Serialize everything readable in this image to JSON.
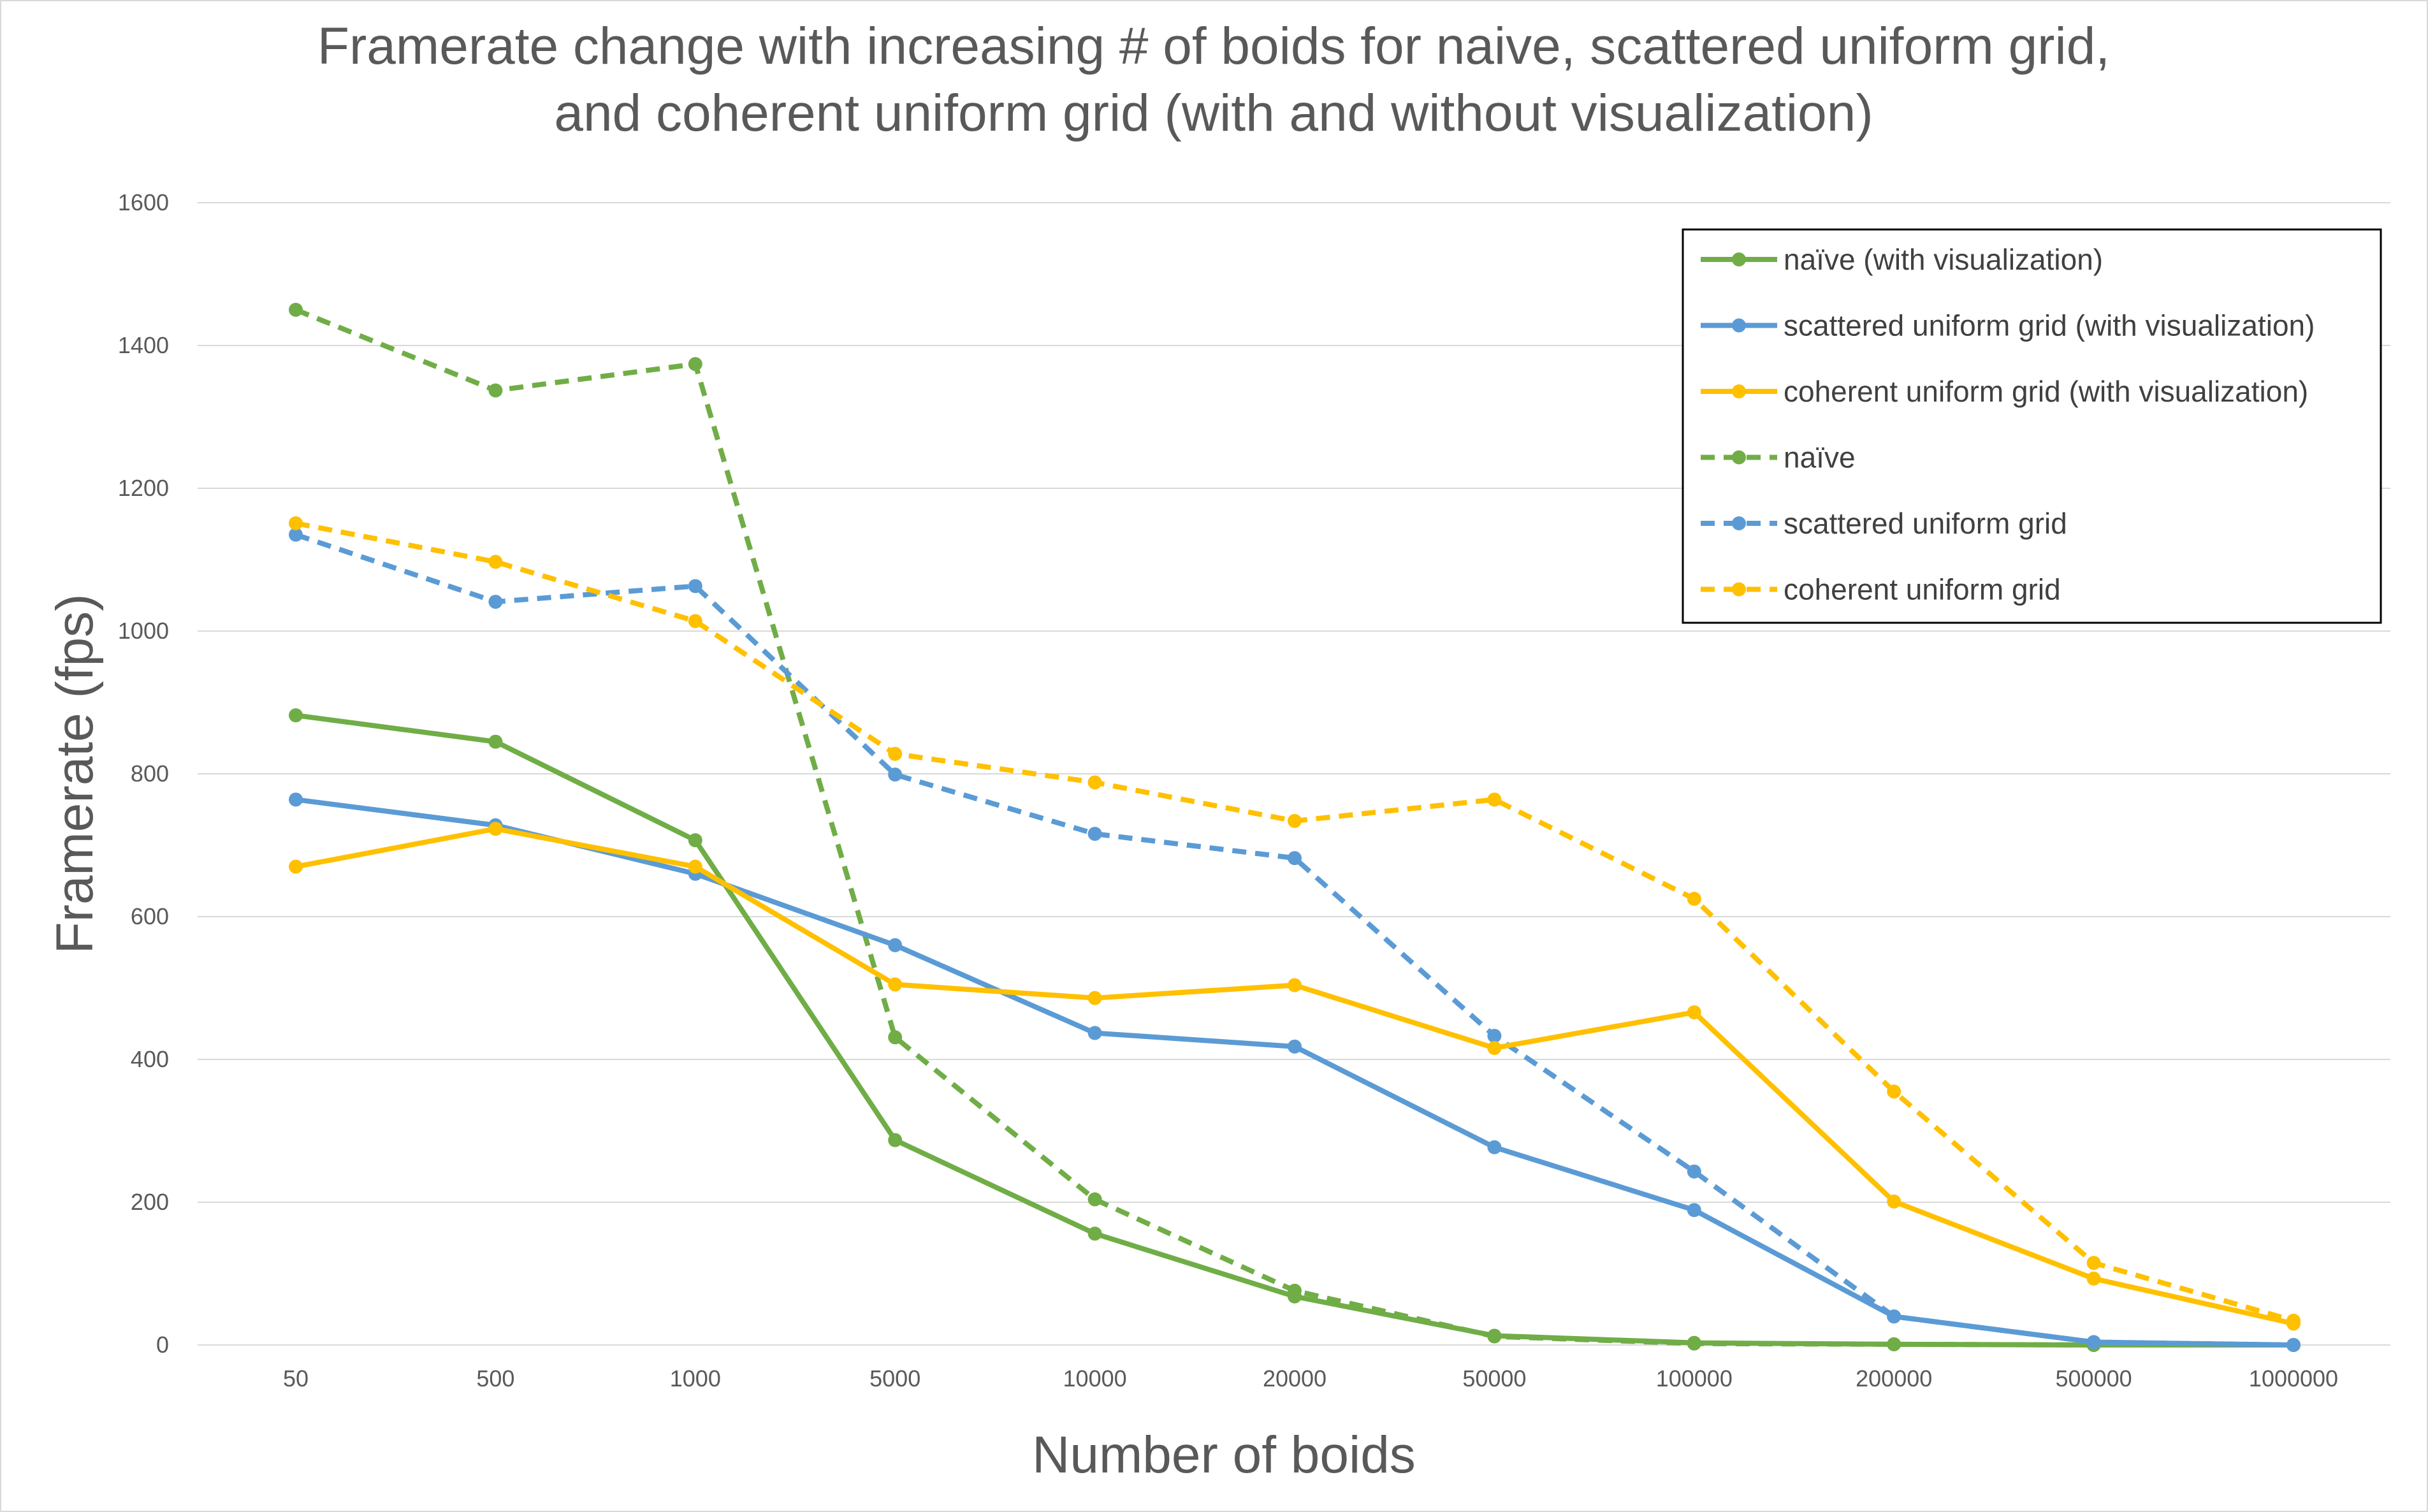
{
  "chart_data": {
    "type": "line",
    "title_lines": [
      "Framerate change with increasing # of boids for naive, scattered uniform grid,",
      "and coherent uniform grid (with and without visualization)"
    ],
    "xlabel": "Number of boids",
    "ylabel": "Framerate (fps)",
    "categories": [
      "50",
      "500",
      "1000",
      "5000",
      "10000",
      "20000",
      "50000",
      "100000",
      "200000",
      "500000",
      "1000000"
    ],
    "ylim": [
      0,
      1600
    ],
    "yticks": [
      "0",
      "200",
      "400",
      "600",
      "800",
      "1000",
      "1200",
      "1400",
      "1600"
    ],
    "grid": true,
    "legend_position": "top-right",
    "series": [
      {
        "name": "naïve (with visualization)",
        "color": "#70ad47",
        "dash": "solid",
        "values": [
          882,
          845,
          707,
          287,
          156,
          68,
          13,
          3,
          1,
          0,
          0
        ]
      },
      {
        "name": "scattered uniform grid (with visualization)",
        "color": "#5b9bd5",
        "dash": "solid",
        "values": [
          764,
          728,
          660,
          560,
          437,
          418,
          277,
          189,
          40,
          4,
          0
        ]
      },
      {
        "name": "coherent uniform grid (with visualization)",
        "color": "#ffc000",
        "dash": "solid",
        "values": [
          670,
          723,
          670,
          505,
          486,
          504,
          416,
          466,
          201,
          93,
          30
        ]
      },
      {
        "name": "naïve",
        "color": "#70ad47",
        "dash": "dashed",
        "values": [
          1450,
          1337,
          1374,
          431,
          204,
          76,
          12,
          2,
          1,
          0,
          0
        ]
      },
      {
        "name": "scattered uniform grid",
        "color": "#5b9bd5",
        "dash": "dashed",
        "values": [
          1135,
          1041,
          1063,
          799,
          716,
          682,
          433,
          243,
          40,
          4,
          0
        ]
      },
      {
        "name": "coherent uniform grid",
        "color": "#ffc000",
        "dash": "dashed",
        "values": [
          1151,
          1097,
          1014,
          828,
          788,
          734,
          764,
          625,
          355,
          115,
          34
        ]
      }
    ]
  }
}
